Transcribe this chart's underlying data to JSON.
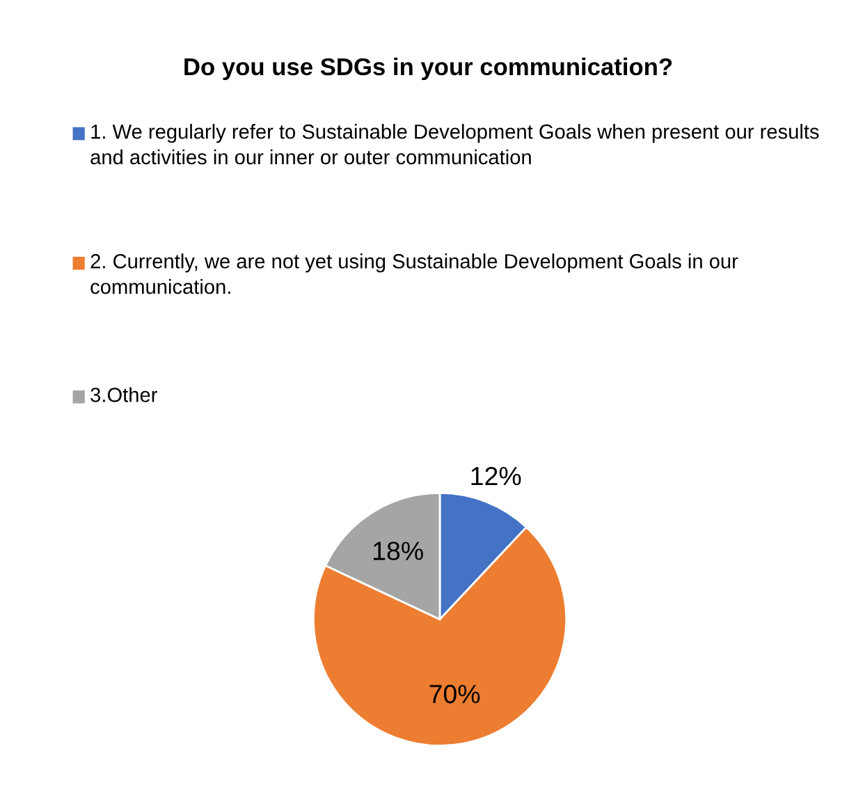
{
  "chart_data": {
    "type": "pie",
    "title": "Do you use SDGs in your communication?",
    "categories": [
      "1. We regularly refer to Sustainable Development Goals when present our results and activities in our inner or outer communication",
      "2. Currently, we are not yet using Sustainable Development Goals in our communication.",
      "3.Other"
    ],
    "values": [
      12,
      70,
      18
    ],
    "colors": [
      "#4472c4",
      "#ed7d31",
      "#a5a5a5"
    ],
    "value_labels": [
      "12%",
      "70%",
      "18%"
    ],
    "legend": "top"
  }
}
